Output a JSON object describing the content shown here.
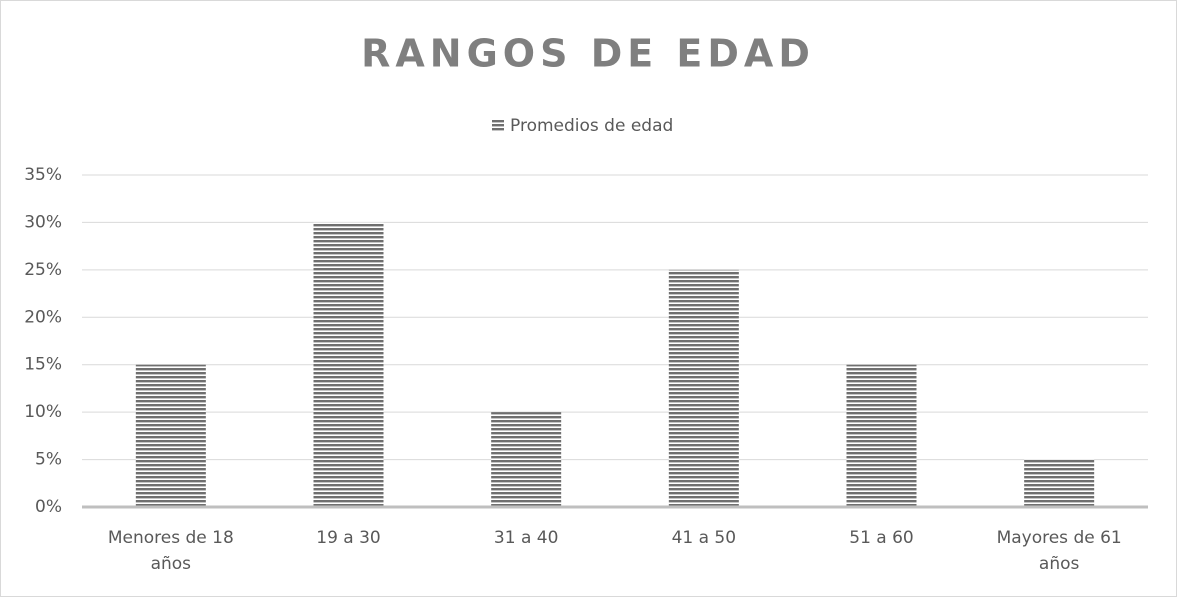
{
  "chart_data": {
    "type": "bar",
    "title": "RANGOS DE EDAD",
    "categories": [
      "Menores de 18 años",
      "19 a 30",
      "31 a 40",
      "41 a 50",
      "51 a 60",
      "Mayores de 61 años"
    ],
    "series": [
      {
        "name": "Promedios de edad",
        "color": "#6f6f6f",
        "values": [
          15,
          30,
          10,
          25,
          15,
          5
        ]
      }
    ],
    "ylim": [
      0,
      35
    ],
    "yticks": [
      {
        "value": 0,
        "label": "0%"
      },
      {
        "value": 5,
        "label": "5%"
      },
      {
        "value": 10,
        "label": "10%"
      },
      {
        "value": 15,
        "label": "15%"
      },
      {
        "value": 20,
        "label": "20%"
      },
      {
        "value": 25,
        "label": "25%"
      },
      {
        "value": 30,
        "label": "30%"
      },
      {
        "value": 35,
        "label": "35%"
      }
    ],
    "grid": true,
    "legend": "top"
  }
}
